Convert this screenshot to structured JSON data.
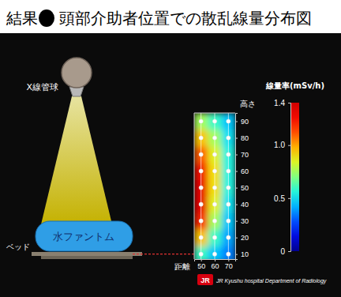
{
  "slide": {
    "title_prefix": "結果",
    "title": "頭部介助者位置での散乱線量分布図",
    "labels": {
      "tube": "X線管球",
      "bed": "ベッド",
      "phantom": "水ファントム"
    },
    "footer": {
      "logo": "JR",
      "text": "JR Kyushu hospital Department of Radiology"
    }
  },
  "chart_data": {
    "type": "heatmap",
    "x": [
      50,
      60,
      70
    ],
    "y": [
      10,
      20,
      30,
      40,
      50,
      60,
      70,
      80,
      90
    ],
    "cells": [
      [
        0.6,
        0.45,
        0.35
      ],
      [
        0.95,
        0.6,
        0.4
      ],
      [
        1.2,
        0.75,
        0.45
      ],
      [
        1.3,
        0.85,
        0.5
      ],
      [
        1.3,
        0.9,
        0.55
      ],
      [
        1.25,
        0.9,
        0.55
      ],
      [
        1.1,
        0.85,
        0.55
      ],
      [
        0.95,
        0.75,
        0.5
      ],
      [
        0.75,
        0.6,
        0.45
      ]
    ],
    "xlim": [
      45,
      75
    ],
    "ylim": [
      7,
      95
    ],
    "xticks": [
      50,
      60,
      70
    ],
    "yticks": [
      10,
      20,
      30,
      40,
      50,
      60,
      70,
      80,
      90
    ],
    "xlabel": "距離",
    "ylabel": "高さ",
    "grid": true,
    "marker": "circle",
    "colorbar_label": "線量率(mSv/h)",
    "colorbar_range": [
      0,
      1.4
    ],
    "colorbar_ticks": [
      0,
      0.5,
      {
        "value": 1,
        "label": "1.0"
      },
      1.4
    ]
  }
}
